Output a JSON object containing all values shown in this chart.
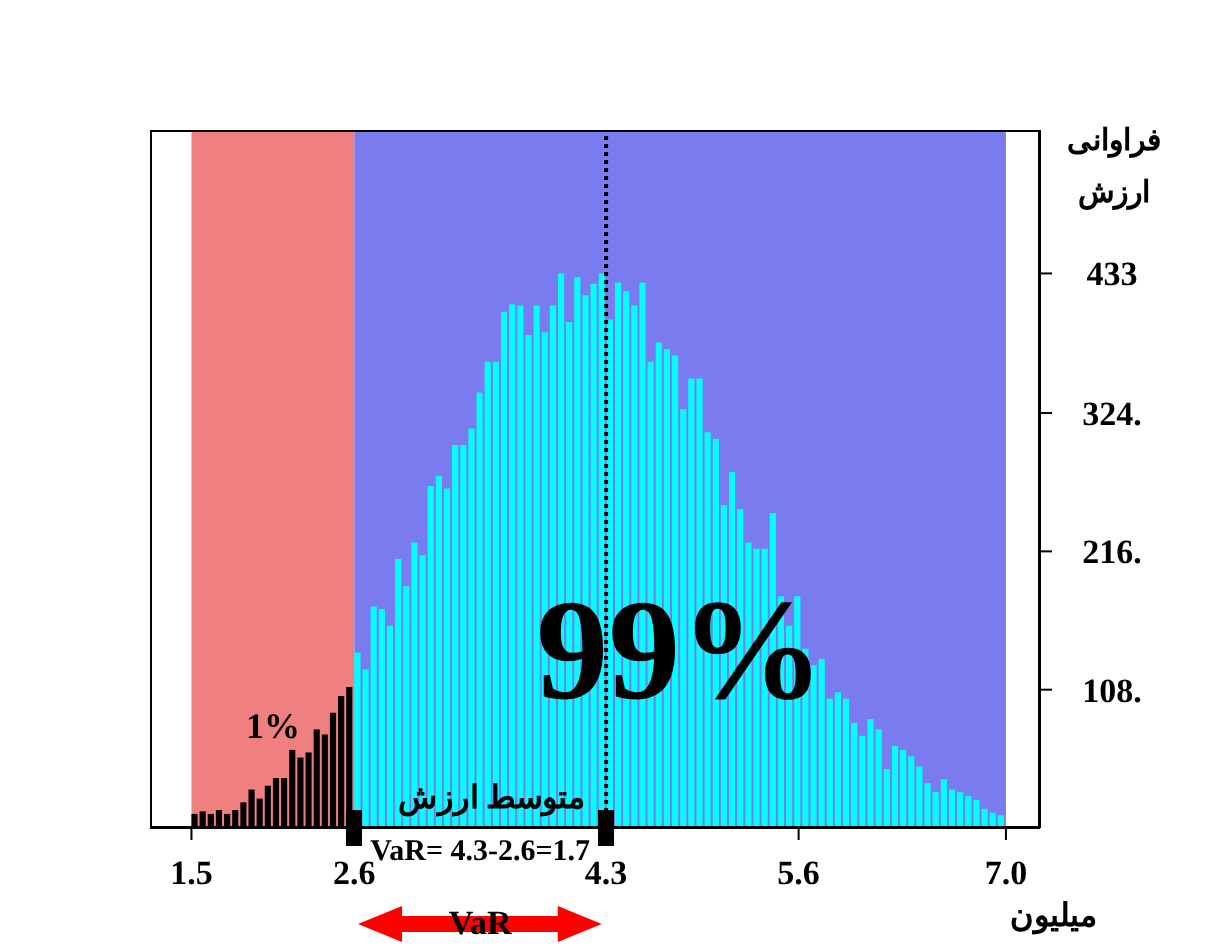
{
  "chart_data": {
    "type": "histogram",
    "bins": [
      1.5,
      1.555,
      1.61,
      1.665,
      1.72,
      1.775,
      1.83,
      1.885,
      1.94,
      1.995,
      2.05,
      2.105,
      2.16,
      2.215,
      2.27,
      2.325,
      2.38,
      2.435,
      2.49,
      2.545,
      2.6,
      2.655,
      2.71,
      2.765,
      2.82,
      2.875,
      2.93,
      2.985,
      3.04,
      3.095,
      3.15,
      3.205,
      3.26,
      3.315,
      3.37,
      3.425,
      3.48,
      3.535,
      3.59,
      3.645,
      3.7,
      3.755,
      3.81,
      3.865,
      3.92,
      3.975,
      4.03,
      4.085,
      4.14,
      4.195,
      4.25,
      4.305,
      4.36,
      4.415,
      4.47,
      4.525,
      4.58,
      4.635,
      4.69,
      4.745,
      4.8,
      4.855,
      4.91,
      4.965,
      5.02,
      5.075,
      5.13,
      5.185,
      5.24,
      5.295,
      5.35,
      5.405,
      5.46,
      5.515,
      5.57,
      5.625,
      5.68,
      5.735,
      5.79,
      5.845,
      5.9,
      5.955,
      6.01,
      6.065,
      6.12,
      6.175,
      6.23,
      6.285,
      6.34,
      6.395,
      6.45,
      6.505,
      6.56,
      6.615,
      6.67,
      6.725,
      6.78,
      6.835,
      6.89,
      6.945,
      7.0
    ],
    "values": [
      11,
      13,
      11,
      14,
      11,
      14,
      20,
      30,
      23,
      33,
      39,
      39,
      61,
      55,
      59,
      77,
      73,
      90,
      103,
      110,
      137,
      124,
      173,
      171,
      158,
      210,
      189,
      223,
      213,
      267,
      275,
      265,
      299,
      299,
      312,
      340,
      364,
      364,
      403,
      409,
      408,
      385,
      408,
      387,
      408,
      433,
      395,
      430,
      416,
      425,
      433,
      397,
      426,
      419,
      408,
      426,
      364,
      379,
      374,
      369,
      327,
      351,
      351,
      309,
      304,
      252,
      278,
      249,
      223,
      218,
      218,
      246,
      181,
      158,
      181,
      140,
      127,
      132,
      101,
      106,
      101,
      82,
      72,
      85,
      77,
      46,
      64,
      61,
      56,
      48,
      35,
      28,
      38,
      30,
      28,
      25,
      22,
      15,
      12,
      10
    ],
    "colors": [
      "#000000",
      "#000000",
      "#000000",
      "#000000",
      "#000000",
      "#000000",
      "#000000",
      "#000000",
      "#000000",
      "#000000",
      "#000000",
      "#000000",
      "#000000",
      "#000000",
      "#000000",
      "#000000",
      "#000000",
      "#000000",
      "#000000",
      "#000000",
      "#00ffff",
      "#00ffff",
      "#00ffff",
      "#00ffff",
      "#00ffff",
      "#00ffff",
      "#00ffff",
      "#00ffff",
      "#00ffff",
      "#00ffff",
      "#00ffff",
      "#00ffff",
      "#00ffff",
      "#00ffff",
      "#00ffff",
      "#00ffff",
      "#00ffff",
      "#00ffff",
      "#00ffff",
      "#00ffff",
      "#00ffff",
      "#00ffff",
      "#00ffff",
      "#00ffff",
      "#00ffff",
      "#00ffff",
      "#00ffff",
      "#00ffff",
      "#00ffff",
      "#00ffff",
      "#00ffff",
      "#00ffff",
      "#00ffff",
      "#00ffff",
      "#00ffff",
      "#00ffff",
      "#00ffff",
      "#00ffff",
      "#00ffff",
      "#00ffff",
      "#00ffff",
      "#00ffff",
      "#00ffff",
      "#00ffff",
      "#00ffff",
      "#00ffff",
      "#00ffff",
      "#00ffff",
      "#00ffff",
      "#00ffff",
      "#00ffff",
      "#00ffff",
      "#00ffff",
      "#00ffff",
      "#00ffff",
      "#00ffff",
      "#00ffff",
      "#00ffff",
      "#00ffff",
      "#00ffff",
      "#00ffff",
      "#00ffff",
      "#00ffff",
      "#00ffff",
      "#00ffff",
      "#00ffff",
      "#00ffff",
      "#00ffff",
      "#00ffff",
      "#00ffff",
      "#00ffff",
      "#00ffff",
      "#00ffff",
      "#00ffff",
      "#00ffff",
      "#00ffff",
      "#00ffff",
      "#00ffff",
      "#00ffff",
      "#00ffff"
    ],
    "xlim": [
      1.22,
      7.23
    ],
    "xticks": [
      1.5,
      2.6,
      4.3,
      5.6,
      {
        "value": 7,
        "label": "7.0"
      }
    ],
    "ylim": [
      0,
      545
    ],
    "yticks": [
      {
        "value": 108,
        "label": "108."
      },
      {
        "value": 216,
        "label": "216."
      },
      {
        "value": 324,
        "label": "324."
      },
      433
    ],
    "xlabel": "میلیون",
    "ylabel": "فراوانی ارزش",
    "bands": [
      {
        "axis": "x",
        "from": 1.5,
        "to": 2.6,
        "label": "1%",
        "color": "#f08080"
      },
      {
        "axis": "x",
        "from": 2.6,
        "to": 7.0,
        "label": "99%",
        "color": "#7b7bf0"
      }
    ],
    "ref_lines": [
      {
        "axis": "x",
        "value": 4.3,
        "label": "متوسط ارزش",
        "line_style": "dotted",
        "color": "#000000"
      }
    ],
    "annotations": [
      "VaR= 4.3-2.6=1.7",
      "VaR"
    ],
    "grid": false,
    "legend": false
  }
}
